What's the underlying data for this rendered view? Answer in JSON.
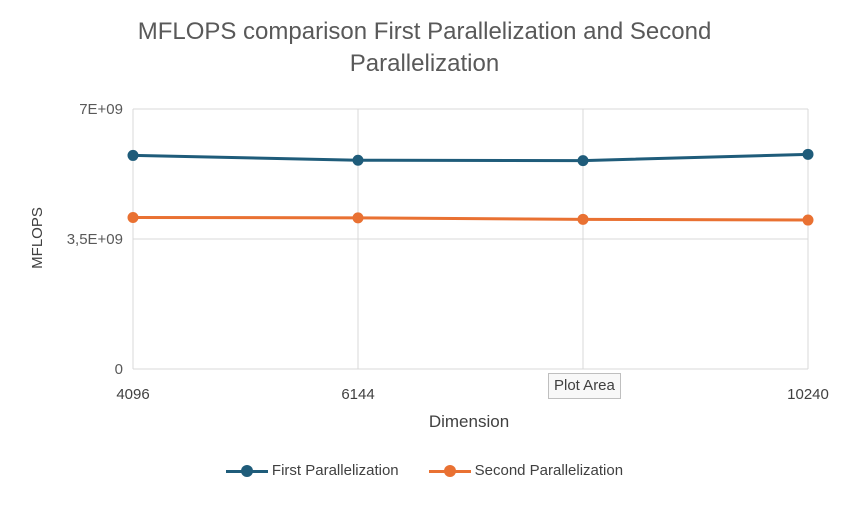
{
  "chart_data": {
    "type": "line",
    "title": "MFLOPS comparison First Parallelization and Second Parallelization",
    "title_lines": [
      "MFLOPS comparison First Parallelization and Second",
      "Parallelization"
    ],
    "xlabel": "Dimension",
    "ylabel": "MFLOPS",
    "x": [
      "4096",
      "6144",
      "8192",
      "10240"
    ],
    "x_tick_labels": [
      "4096",
      "6144",
      "",
      "10240"
    ],
    "ylim": [
      0,
      7000000000
    ],
    "y_ticks": [
      0,
      3500000000,
      7000000000
    ],
    "y_tick_labels": [
      "0",
      "3,5E+09",
      "7E+09"
    ],
    "grid": true,
    "legend": "bottom",
    "series": [
      {
        "name": "First Parallelization",
        "color": "#1f5c7a",
        "values": [
          5750000000,
          5620000000,
          5610000000,
          5780000000
        ]
      },
      {
        "name": "Second Parallelization",
        "color": "#e97132",
        "values": [
          4080000000,
          4070000000,
          4030000000,
          4010000000
        ]
      }
    ]
  },
  "tooltip": {
    "text": "Plot Area"
  }
}
